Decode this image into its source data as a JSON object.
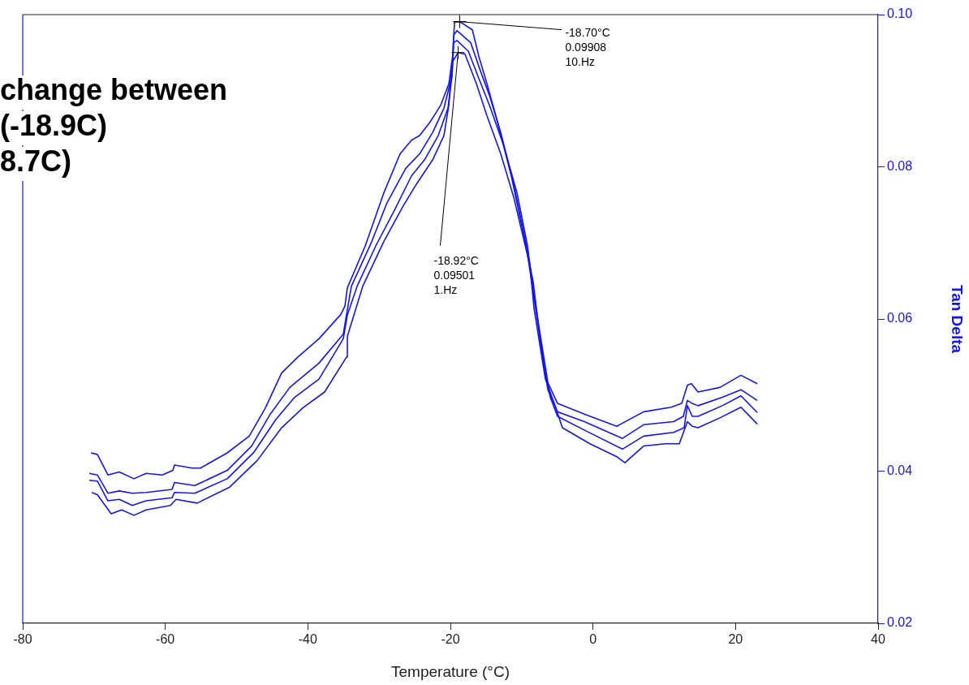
{
  "chart_data": {
    "type": "line",
    "xlabel": "Temperature (°C)",
    "ylabel": "Tan Delta",
    "xlim": [
      -80,
      40
    ],
    "xticks": [
      -80,
      -60,
      -40,
      -20,
      0,
      20,
      40
    ],
    "ylim": [
      0.02,
      0.1
    ],
    "yticks": [
      {
        "value": 0.02,
        "label": "0.02"
      },
      {
        "value": 0.04,
        "label": "0.04"
      },
      {
        "value": 0.06,
        "label": "0.06"
      },
      {
        "value": 0.08,
        "label": "0.08"
      },
      {
        "value": 0.1,
        "label": "0.10"
      }
    ],
    "grid": false,
    "legend": false,
    "marker": "none",
    "line_style": "solid",
    "annotations": [
      {
        "text": "-18.70°C\n0.09908\n10.Hz",
        "x": -18.7,
        "y": 0.09908
      },
      {
        "text": "-18.92°C\n0.09501\n1.Hz",
        "x": -18.92,
        "y": 0.09501
      },
      "change between\n(-18.9C)\n8.7C)"
    ],
    "series": [
      {
        "color": "#1414f0",
        "x": [
          -70.44,
          -69.53,
          -68.05,
          -66.45,
          -64.4,
          -62.69,
          -60.42,
          -58.94,
          -58.71,
          -56.2,
          -55.07,
          -51.31,
          -48.23,
          -45.96,
          -43.68,
          -41.4,
          -38.44,
          -35.37,
          -34.8,
          -34.46,
          -31.95,
          -29.33,
          -27.06,
          -25.46,
          -24.32,
          -22.84,
          -21.36,
          -20.22,
          -19.66,
          -19.43,
          -18.7,
          -16.92,
          -16.01,
          -14.87,
          -13.39,
          -11.46,
          -9.52,
          -8.39,
          -7.25,
          -6.56,
          -4.97,
          -1.21,
          3.34,
          7.1,
          10.97,
          12.45,
          13.25,
          13.82,
          14.73,
          17.8,
          20.76,
          23.04
        ],
        "values": [
          0.0424,
          0.0422,
          0.0395,
          0.0399,
          0.039,
          0.0397,
          0.0395,
          0.0401,
          0.0408,
          0.0404,
          0.0404,
          0.0424,
          0.0446,
          0.0483,
          0.0529,
          0.055,
          0.0574,
          0.0606,
          0.0617,
          0.0641,
          0.0696,
          0.0766,
          0.0817,
          0.0835,
          0.0841,
          0.0859,
          0.0881,
          0.0909,
          0.0948,
          0.099,
          0.09908,
          0.098,
          0.0945,
          0.0909,
          0.0859,
          0.0788,
          0.0702,
          0.0649,
          0.0561,
          0.0521,
          0.0489,
          0.0475,
          0.0459,
          0.0478,
          0.0484,
          0.0489,
          0.0513,
          0.0515,
          0.0504,
          0.051,
          0.0526,
          0.0515
        ]
      },
      {
        "color": "#1414f0",
        "x": [
          -70.66,
          -69.53,
          -68.05,
          -66.45,
          -64.63,
          -62.69,
          -59.05,
          -58.71,
          -55.86,
          -51.31,
          -47.89,
          -45.27,
          -42.54,
          -38.44,
          -35.03,
          -34.57,
          -33.89,
          -31.16,
          -28.88,
          -26.26,
          -24.32,
          -22.5,
          -20.91,
          -19.77,
          -19.54,
          -19.09,
          -17.15,
          -15.79,
          -14.53,
          -12.94,
          -11.12,
          -9.41,
          -8.61,
          -7.13,
          -6.33,
          -4.97,
          -1.21,
          4.14,
          7.1,
          11.31,
          12.68,
          13.25,
          13.93,
          14.73,
          18.14,
          20.76,
          23.04
        ],
        "values": [
          0.0397,
          0.0395,
          0.0371,
          0.0374,
          0.0371,
          0.0372,
          0.0376,
          0.0385,
          0.0381,
          0.0401,
          0.0433,
          0.0475,
          0.051,
          0.0542,
          0.058,
          0.0606,
          0.0643,
          0.0699,
          0.0753,
          0.0798,
          0.0817,
          0.0845,
          0.0877,
          0.092,
          0.0973,
          0.0979,
          0.0963,
          0.0926,
          0.0894,
          0.0845,
          0.0777,
          0.0699,
          0.0649,
          0.0557,
          0.0507,
          0.0478,
          0.0465,
          0.0443,
          0.0461,
          0.0465,
          0.0472,
          0.0493,
          0.0489,
          0.0486,
          0.0497,
          0.0507,
          0.0493
        ]
      },
      {
        "color": "#1414f0",
        "x": [
          -70.66,
          -69.53,
          -68.05,
          -66.45,
          -64.63,
          -62.69,
          -59.05,
          -58.71,
          -55.86,
          -51.31,
          -47.55,
          -44.48,
          -41.86,
          -38.44,
          -35.03,
          -34.46,
          -33.09,
          -30.47,
          -27.74,
          -25.46,
          -23.64,
          -21.71,
          -20.34,
          -19.77,
          -19.54,
          -19.09,
          -17.49,
          -16.01,
          -14.53,
          -12.6,
          -10.66,
          -9.18,
          -8.39,
          -6.9,
          -5.99,
          -4.97,
          -1.21,
          4.14,
          7.1,
          11.31,
          12.79,
          13.25,
          13.93,
          14.73,
          18.14,
          20.76,
          23.04
        ],
        "values": [
          0.0388,
          0.0387,
          0.0361,
          0.0363,
          0.0355,
          0.0361,
          0.0365,
          0.0372,
          0.0371,
          0.039,
          0.0425,
          0.0468,
          0.0497,
          0.0521,
          0.0574,
          0.0605,
          0.0643,
          0.0696,
          0.0745,
          0.0788,
          0.0809,
          0.0841,
          0.0877,
          0.092,
          0.0963,
          0.0966,
          0.0952,
          0.0916,
          0.0881,
          0.083,
          0.0766,
          0.0696,
          0.0638,
          0.055,
          0.0497,
          0.0472,
          0.0454,
          0.0429,
          0.0446,
          0.0451,
          0.0457,
          0.0486,
          0.0472,
          0.0472,
          0.0486,
          0.0499,
          0.0477
        ]
      },
      {
        "color": "#1414f0",
        "x": [
          -70.32,
          -69.53,
          -67.59,
          -66.11,
          -64.4,
          -62.69,
          -59.28,
          -58.48,
          -55.52,
          -50.97,
          -47.1,
          -43.68,
          -40.72,
          -37.65,
          -34.57,
          -34.46,
          -32.3,
          -29.33,
          -26.6,
          -24.78,
          -22.5,
          -20.91,
          -20.22,
          -19.77,
          -18.92,
          -17.95,
          -16.35,
          -14.87,
          -12.94,
          -11.12,
          -8.84,
          -8.27,
          -6.68,
          -5.43,
          -4.29,
          -0.42,
          3.34,
          4.48,
          7.1,
          10.17,
          12.11,
          13.25,
          13.93,
          14.73,
          17.8,
          20.76,
          23.04
        ],
        "values": [
          0.0372,
          0.0369,
          0.0344,
          0.0349,
          0.0342,
          0.0349,
          0.0355,
          0.0363,
          0.0358,
          0.0379,
          0.0414,
          0.0457,
          0.0483,
          0.0504,
          0.055,
          0.0577,
          0.0643,
          0.0702,
          0.0749,
          0.0777,
          0.0809,
          0.0841,
          0.0881,
          0.0937,
          0.09501,
          0.0948,
          0.0909,
          0.0867,
          0.0817,
          0.076,
          0.067,
          0.0614,
          0.0521,
          0.0489,
          0.0457,
          0.0436,
          0.0419,
          0.0411,
          0.0433,
          0.0436,
          0.0436,
          0.0465,
          0.0459,
          0.0457,
          0.047,
          0.0484,
          0.0462
        ]
      }
    ]
  }
}
